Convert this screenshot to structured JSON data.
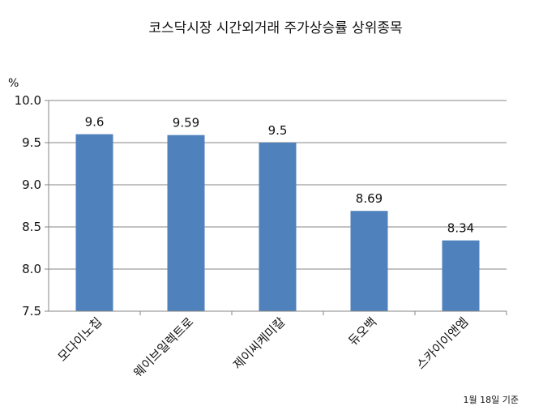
{
  "chart_data": {
    "type": "bar",
    "title": "코스닥시장 시간외거래  주가상승률 상위종목",
    "ylabel": "%",
    "ylim": [
      7.5,
      10.0
    ],
    "yticks": [
      "7.5",
      "8.0",
      "8.5",
      "9.0",
      "9.5",
      "10.0"
    ],
    "grid": true,
    "categories": [
      "모다이노칩",
      "웨이브일렉트로",
      "제이씨케미칼",
      "듀오백",
      "스카이이앤엠"
    ],
    "values": [
      9.6,
      9.59,
      9.5,
      8.69,
      8.34
    ],
    "data_labels": [
      "9.6",
      "9.59",
      "9.5",
      "8.69",
      "8.34"
    ],
    "bar_color": "#4f81bd",
    "footnote": "1월 18일 기준"
  }
}
